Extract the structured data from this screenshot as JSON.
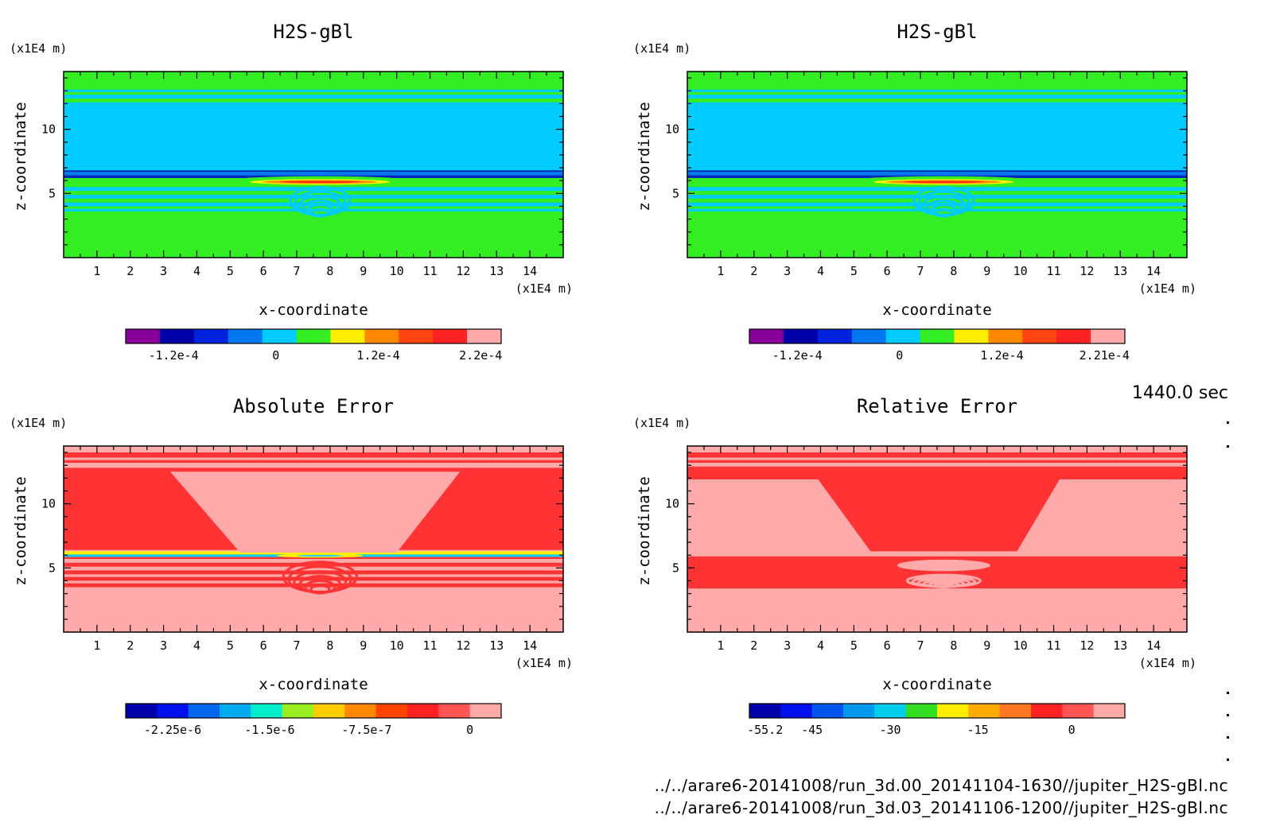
{
  "footer": {
    "time": "1440.0 sec",
    "file1": "../../arare6-20141008/run_3d.00_20141104-1630//jupiter_H2S-gBl.nc",
    "file2": "../../arare6-20141008/run_3d.03_20141106-1200//jupiter_H2S-gBl.nc"
  },
  "chart_data": [
    {
      "type": "heatmap",
      "title": "H2S-gBl",
      "xlabel": "x-coordinate",
      "ylabel": "z-coordinate",
      "x_unit": "(x1E4 m)",
      "y_unit": "(x1E4 m)",
      "xlim": [
        0,
        15
      ],
      "ylim": [
        0,
        14.5
      ],
      "xticks": [
        1,
        2,
        3,
        4,
        5,
        6,
        7,
        8,
        9,
        10,
        11,
        12,
        13,
        14
      ],
      "yticks": [
        5,
        10
      ],
      "background": "#33ee22",
      "bands": [
        {
          "z0": 12.4,
          "z1": 12.7,
          "color": "#00ccff"
        },
        {
          "z0": 12.9,
          "z1": 13.1,
          "color": "#00ccff"
        },
        {
          "z0": 6.8,
          "z1": 12.1,
          "color": "#00ccff"
        },
        {
          "z0": 6.2,
          "z1": 6.8,
          "color": "#0022bb"
        },
        {
          "z0": 6.4,
          "z1": 6.7,
          "color": "#0077ee"
        },
        {
          "z0": 5.2,
          "z1": 5.5,
          "color": "#00ccff"
        },
        {
          "z0": 4.6,
          "z1": 4.9,
          "color": "#00ccff"
        },
        {
          "z0": 4.0,
          "z1": 4.3,
          "color": "#00ccff"
        },
        {
          "z0": 3.6,
          "z1": 3.8,
          "color": "#00ccff"
        }
      ],
      "blobs": [
        {
          "cx": 7.7,
          "cz": 6.0,
          "rx": 2.7,
          "rz": 0.35,
          "color": "#33ee22"
        },
        {
          "cx": 7.7,
          "cz": 5.9,
          "rx": 2.1,
          "rz": 0.22,
          "color": "#ffee00"
        },
        {
          "cx": 7.7,
          "cz": 5.9,
          "rx": 1.7,
          "rz": 0.14,
          "color": "#ff8800"
        },
        {
          "cx": 7.7,
          "cz": 5.9,
          "rx": 1.2,
          "rz": 0.08,
          "color": "#ff3311"
        },
        {
          "cx": 7.7,
          "cz": 4.4,
          "rx": 0.9,
          "rz": 1.2,
          "color": "#00ccff",
          "stripes": true
        }
      ],
      "colorbar": {
        "colors": [
          "#880099",
          "#0000aa",
          "#0022dd",
          "#0077ee",
          "#00ccff",
          "#33ee22",
          "#ffee00",
          "#ff8800",
          "#ff4411",
          "#ff2222",
          "#ffaaaa"
        ],
        "labels": [
          "-1.2e-4",
          "0",
          "1.2e-4",
          "2.2e-4"
        ],
        "label_pos": [
          1.4,
          4.4,
          7.4,
          10.4
        ]
      }
    },
    {
      "type": "heatmap",
      "title": "H2S-gBl",
      "xlabel": "x-coordinate",
      "ylabel": "z-coordinate",
      "x_unit": "(x1E4 m)",
      "y_unit": "(x1E4 m)",
      "xlim": [
        0,
        15
      ],
      "ylim": [
        0,
        14.5
      ],
      "xticks": [
        1,
        2,
        3,
        4,
        5,
        6,
        7,
        8,
        9,
        10,
        11,
        12,
        13,
        14
      ],
      "yticks": [
        5,
        10
      ],
      "background": "#33ee22",
      "bands": [
        {
          "z0": 12.4,
          "z1": 12.7,
          "color": "#00ccff"
        },
        {
          "z0": 12.9,
          "z1": 13.1,
          "color": "#00ccff"
        },
        {
          "z0": 6.8,
          "z1": 12.1,
          "color": "#00ccff"
        },
        {
          "z0": 6.2,
          "z1": 6.8,
          "color": "#0022bb"
        },
        {
          "z0": 6.4,
          "z1": 6.7,
          "color": "#0077ee"
        },
        {
          "z0": 5.2,
          "z1": 5.5,
          "color": "#00ccff"
        },
        {
          "z0": 4.6,
          "z1": 4.9,
          "color": "#00ccff"
        },
        {
          "z0": 4.0,
          "z1": 4.3,
          "color": "#00ccff"
        },
        {
          "z0": 3.6,
          "z1": 3.8,
          "color": "#00ccff"
        }
      ],
      "blobs": [
        {
          "cx": 7.7,
          "cz": 6.0,
          "rx": 2.7,
          "rz": 0.35,
          "color": "#33ee22"
        },
        {
          "cx": 7.7,
          "cz": 5.9,
          "rx": 2.1,
          "rz": 0.22,
          "color": "#ffee00"
        },
        {
          "cx": 7.7,
          "cz": 5.9,
          "rx": 1.7,
          "rz": 0.14,
          "color": "#ff8800"
        },
        {
          "cx": 7.7,
          "cz": 5.9,
          "rx": 1.2,
          "rz": 0.08,
          "color": "#ff3311"
        },
        {
          "cx": 7.7,
          "cz": 4.4,
          "rx": 0.9,
          "rz": 1.2,
          "color": "#00ccff",
          "stripes": true
        }
      ],
      "colorbar": {
        "colors": [
          "#880099",
          "#0000aa",
          "#0022dd",
          "#0077ee",
          "#00ccff",
          "#33ee22",
          "#ffee00",
          "#ff8800",
          "#ff4411",
          "#ff2222",
          "#ffaaaa"
        ],
        "labels": [
          "-1.2e-4",
          "0",
          "1.2e-4",
          "2.21e-4"
        ],
        "label_pos": [
          1.4,
          4.4,
          7.4,
          10.4
        ]
      }
    },
    {
      "type": "heatmap",
      "title": "Absolute Error",
      "xlabel": "x-coordinate",
      "ylabel": "z-coordinate",
      "x_unit": "(x1E4 m)",
      "y_unit": "(x1E4 m)",
      "xlim": [
        0,
        15
      ],
      "ylim": [
        0,
        14.5
      ],
      "xticks": [
        1,
        2,
        3,
        4,
        5,
        6,
        7,
        8,
        9,
        10,
        11,
        12,
        13,
        14
      ],
      "yticks": [
        5,
        10
      ],
      "background": "#ffaaaa",
      "bands": [
        {
          "z0": 13.6,
          "z1": 14.0,
          "color": "#ff3333"
        },
        {
          "z0": 13.2,
          "z1": 13.4,
          "color": "#ff3333"
        },
        {
          "z0": 6.4,
          "z1": 12.8,
          "color": "#ff3333"
        },
        {
          "z0": 6.0,
          "z1": 6.3,
          "color": "#ffee00"
        },
        {
          "z0": 5.85,
          "z1": 6.05,
          "color": "#00ccff"
        },
        {
          "z0": 5.7,
          "z1": 5.85,
          "color": "#ff3333"
        },
        {
          "z0": 5.1,
          "z1": 5.4,
          "color": "#ff3333"
        },
        {
          "z0": 4.5,
          "z1": 4.8,
          "color": "#ff3333"
        },
        {
          "z0": 4.0,
          "z1": 4.3,
          "color": "#ff3333"
        },
        {
          "z0": 3.5,
          "z1": 3.8,
          "color": "#ff3333"
        }
      ],
      "trap": {
        "top_z": 12.5,
        "bot_z": 6.2,
        "top_x0": 3.2,
        "top_x1": 11.9,
        "bot_x0": 5.3,
        "bot_x1": 10.0,
        "color": "#ffaaaa"
      },
      "blobs": [
        {
          "cx": 7.7,
          "cz": 5.95,
          "rx": 1.3,
          "rz": 0.15,
          "color": "#ffee00"
        },
        {
          "cx": 7.7,
          "cz": 5.95,
          "rx": 0.7,
          "rz": 0.08,
          "color": "#33ccff"
        },
        {
          "cx": 7.7,
          "cz": 4.3,
          "rx": 1.1,
          "rz": 1.3,
          "color": "#ff3333",
          "stripes": true
        }
      ],
      "colorbar": {
        "colors": [
          "#0000aa",
          "#0011ee",
          "#0066ee",
          "#00aaee",
          "#00eecc",
          "#99ee22",
          "#ffcc00",
          "#ff8800",
          "#ff4400",
          "#ff2222",
          "#ff5555",
          "#ffaaaa"
        ],
        "labels": [
          "-2.25e-6",
          "-1.5e-6",
          "-7.5e-7",
          "0"
        ],
        "label_pos": [
          1.5,
          4.6,
          7.7,
          11.0
        ]
      }
    },
    {
      "type": "heatmap",
      "title": "Relative Error",
      "xlabel": "x-coordinate",
      "ylabel": "z-coordinate",
      "x_unit": "(x1E4 m)",
      "y_unit": "(x1E4 m)",
      "xlim": [
        0,
        15
      ],
      "ylim": [
        0,
        14.5
      ],
      "xticks": [
        1,
        2,
        3,
        4,
        5,
        6,
        7,
        8,
        9,
        10,
        11,
        12,
        13,
        14
      ],
      "yticks": [
        5,
        10
      ],
      "background": "#ffaaaa",
      "bands": [
        {
          "z0": 13.6,
          "z1": 14.0,
          "color": "#ff3333"
        },
        {
          "z0": 13.2,
          "z1": 13.4,
          "color": "#ff3333"
        },
        {
          "z0": 11.9,
          "z1": 12.9,
          "color": "#ff3333"
        },
        {
          "z0": 3.4,
          "z1": 5.9,
          "color": "#ff3333"
        }
      ],
      "trap": {
        "top_z": 12.0,
        "bot_z": 6.3,
        "top_x0": 3.9,
        "top_x1": 11.2,
        "bot_x0": 5.5,
        "bot_x1": 9.9,
        "color": "#ff3333"
      },
      "blobs": [
        {
          "cx": 7.7,
          "cz": 5.2,
          "rx": 1.4,
          "rz": 0.45,
          "color": "#ffaaaa"
        },
        {
          "cx": 7.7,
          "cz": 4.0,
          "rx": 1.1,
          "rz": 0.5,
          "color": "#ffaaaa",
          "stripes": true
        }
      ],
      "colorbar": {
        "colors": [
          "#0000aa",
          "#0011ee",
          "#0055ee",
          "#0099ee",
          "#00ccee",
          "#33dd22",
          "#ffee00",
          "#ffaa00",
          "#ff7722",
          "#ff2222",
          "#ff5555",
          "#ffaaaa"
        ],
        "labels": [
          "-55.2",
          "-45",
          "-30",
          "-15",
          "0"
        ],
        "label_pos": [
          0.5,
          2.0,
          4.5,
          7.3,
          10.3
        ]
      }
    }
  ]
}
